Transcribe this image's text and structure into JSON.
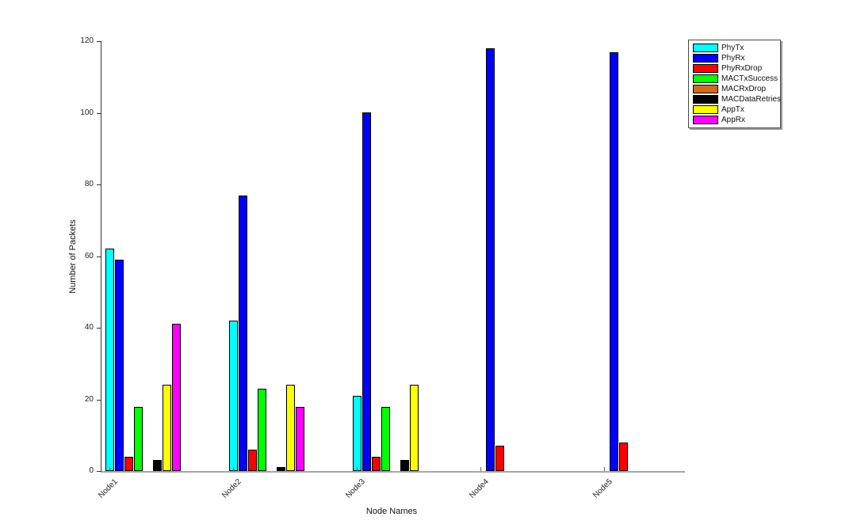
{
  "chart_data": {
    "type": "bar",
    "title": "",
    "xlabel": "Node Names",
    "ylabel": "Number of Packets",
    "categories": [
      "Node1",
      "Node2",
      "Node3",
      "Node4",
      "Node5"
    ],
    "series": [
      {
        "name": "PhyTx",
        "color": "#00ffff",
        "values": [
          62,
          42,
          21,
          0,
          0
        ]
      },
      {
        "name": "PhyRx",
        "color": "#0000ff",
        "values": [
          59,
          77,
          100,
          118,
          117
        ]
      },
      {
        "name": "PhyRxDrop",
        "color": "#ff0000",
        "values": [
          4,
          6,
          4,
          7,
          8
        ]
      },
      {
        "name": "MACTxSuccess",
        "color": "#00ff00",
        "values": [
          18,
          23,
          18,
          0,
          0
        ]
      },
      {
        "name": "MACRxDrop",
        "color": "#d2691e",
        "values": [
          0,
          0,
          0,
          0,
          0
        ]
      },
      {
        "name": "MACDataRetries",
        "color": "#000000",
        "values": [
          3,
          1,
          3,
          0,
          0
        ]
      },
      {
        "name": "AppTx",
        "color": "#ffff00",
        "values": [
          24,
          24,
          24,
          0,
          0
        ]
      },
      {
        "name": "AppRx",
        "color": "#ff00ff",
        "values": [
          41,
          18,
          0,
          0,
          0
        ]
      }
    ],
    "ylim": [
      0,
      120
    ],
    "yticks": [
      0,
      20,
      40,
      60,
      80,
      100,
      120
    ],
    "grid": false,
    "legend_position": "top-right-outside",
    "axis_colors": {
      "left_spine": "#333333",
      "bottom_line": "#a6a6a6"
    }
  }
}
